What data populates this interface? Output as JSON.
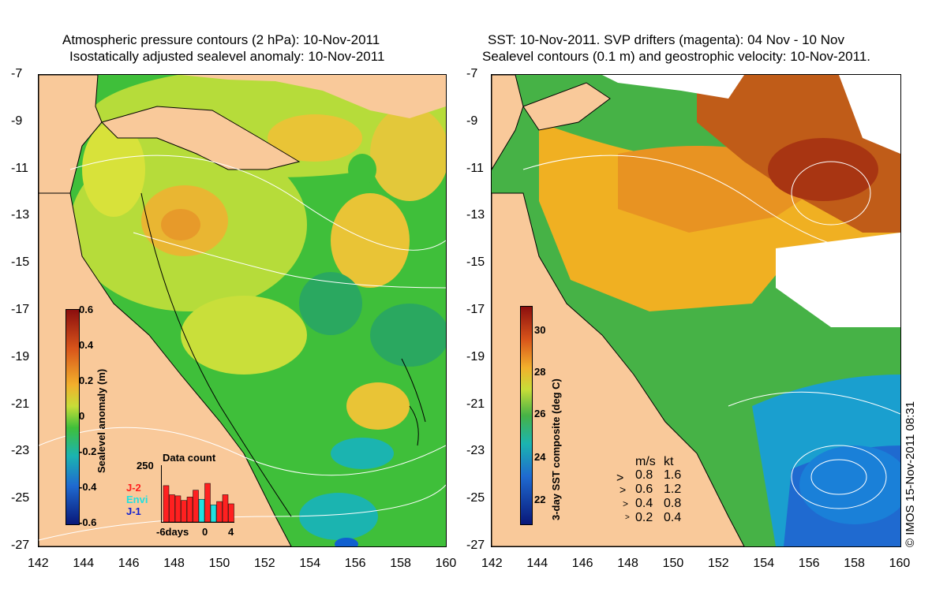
{
  "left_panel": {
    "title_line1": "Atmospheric pressure contours (2 hPa): 10-Nov-2011",
    "title_line2": "Isostatically adjusted sealevel anomaly: 10-Nov-2011",
    "colorbar": {
      "label": "Sealevel anomaly (m)",
      "ticks": [
        "0.6",
        "0.4",
        "0.2",
        "0",
        "-0.2",
        "-0.4",
        "-0.6"
      ],
      "min": -0.6,
      "max": 0.6
    },
    "data_count": {
      "title": "Data count",
      "ymax_label": "250",
      "xlabel_start": "-6days",
      "xlabel_mid": "0",
      "xlabel_end": "4",
      "series": [
        {
          "name": "J-2",
          "color": "#ff2020"
        },
        {
          "name": "Envi",
          "color": "#20e0e0"
        },
        {
          "name": "J-1",
          "color": "#1020d0"
        }
      ],
      "bars": [
        160,
        120,
        115,
        95,
        110,
        140,
        100,
        170,
        75,
        90,
        120,
        80
      ],
      "bar_series": [
        "J-2",
        "J-2",
        "J-2",
        "J-2",
        "J-2",
        "J-2",
        "Envi",
        "J-2",
        "Envi",
        "J-2",
        "J-2",
        "J-2"
      ]
    }
  },
  "right_panel": {
    "title_line1": "SST: 10-Nov-2011. SVP drifters (magenta): 04 Nov - 10 Nov",
    "title_line2": "Sealevel contours (0.1 m) and geostrophic velocity: 10-Nov-2011.",
    "colorbar": {
      "label": "3-day SST composite (deg C)",
      "ticks": [
        "30",
        "28",
        "26",
        "24",
        "22"
      ],
      "min": 20.8,
      "max": 31.2
    },
    "velocity_legend": {
      "header_ms": "m/s",
      "header_kt": "kt",
      "rows": [
        {
          "ms": "0.8",
          "kt": "1.6"
        },
        {
          "ms": "0.6",
          "kt": "1.2"
        },
        {
          "ms": "0.4",
          "kt": "0.8"
        },
        {
          "ms": "0.2",
          "kt": "0.4"
        }
      ]
    }
  },
  "axes": {
    "y_ticks": [
      "-7",
      "-9",
      "-11",
      "-13",
      "-15",
      "-17",
      "-19",
      "-21",
      "-23",
      "-25",
      "-27"
    ],
    "x_ticks": [
      "142",
      "144",
      "146",
      "148",
      "150",
      "152",
      "154",
      "156",
      "158",
      "160"
    ],
    "lat_range": [
      -27,
      -7
    ],
    "lon_range": [
      142,
      160
    ]
  },
  "colors": {
    "land": "#f9c99a",
    "sla_zero": "#3fbf3a",
    "sla_pos": "#d8e23a",
    "sla_high": "#e79a2a",
    "sla_neg": "#1bb4b0",
    "sst_warm": "#a83512",
    "sst_mid": "#f0b022",
    "sst_cool": "#46b246",
    "sst_cold": "#1f6ad0"
  },
  "credit": "© IMOS 15-Nov-2011 08:31"
}
